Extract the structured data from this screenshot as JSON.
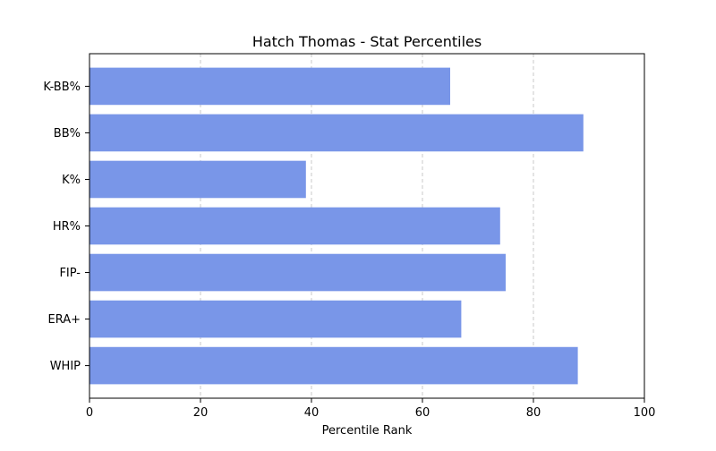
{
  "chart_data": {
    "type": "bar",
    "orientation": "horizontal",
    "title": "Hatch Thomas - Stat Percentiles",
    "xlabel": "Percentile Rank",
    "ylabel": "",
    "xlim": [
      0,
      100
    ],
    "xticks": [
      0,
      20,
      40,
      60,
      80,
      100
    ],
    "categories": [
      "K-BB%",
      "BB%",
      "K%",
      "HR%",
      "FIP-",
      "ERA+",
      "WHIP"
    ],
    "values": [
      65,
      89,
      39,
      74,
      75,
      67,
      88
    ],
    "bar_color": "#7996e8",
    "grid": "x-dashed"
  }
}
